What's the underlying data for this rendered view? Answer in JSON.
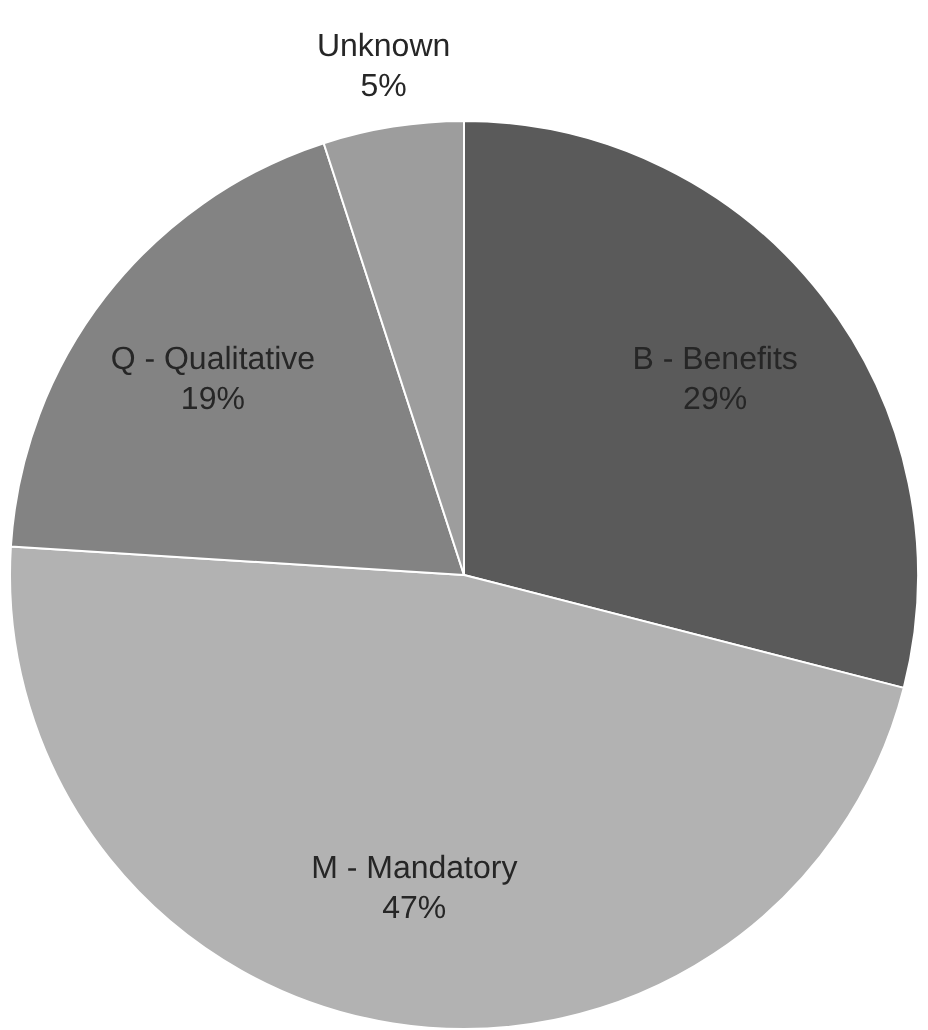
{
  "chart_data": {
    "type": "pie",
    "categories": [
      "B - Benefits",
      "M - Mandatory",
      "Q - Qualitative",
      "Unknown"
    ],
    "values": [
      29,
      47,
      19,
      5
    ],
    "colors": [
      "#5a5a5a",
      "#b2b2b2",
      "#838383",
      "#9d9d9d"
    ],
    "value_labels": [
      "29%",
      "47%",
      "19%",
      "5%"
    ],
    "legend": false
  }
}
